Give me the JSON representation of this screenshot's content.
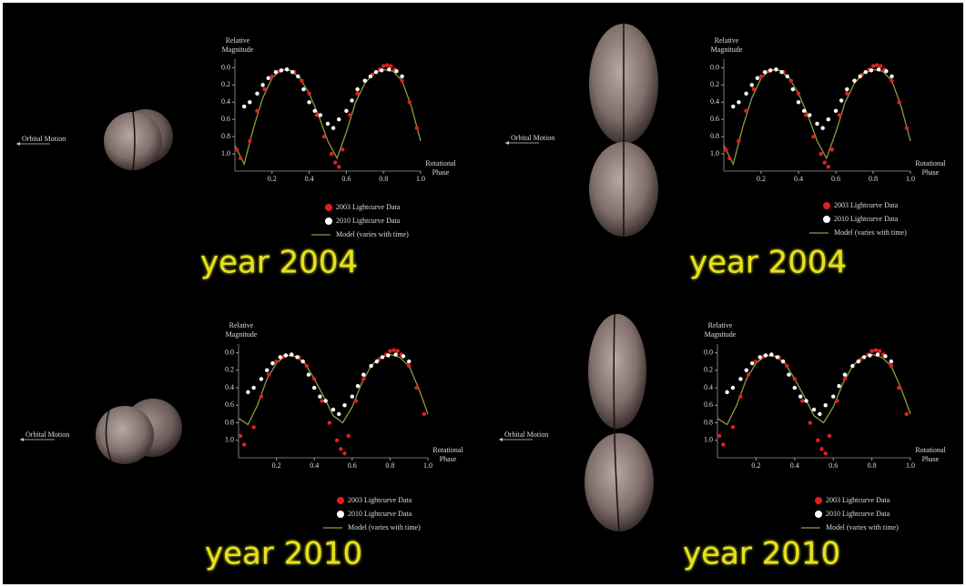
{
  "chart_data": [
    {
      "type": "scatter",
      "xlabel": "Rotational Phase",
      "ylabel": "Relative Magnitude",
      "xlim": [
        0,
        1
      ],
      "ylim": [
        1.2,
        -0.1
      ],
      "xticks": [
        0.2,
        0.4,
        0.6,
        0.8,
        {
          "value": 1,
          "label": "1.0"
        }
      ],
      "yticks": [
        {
          "value": 0,
          "label": "0.0"
        },
        0.2,
        0.4,
        0.6,
        0.8,
        {
          "value": 1,
          "label": "1.0"
        }
      ],
      "series": [
        {
          "name": "2003 Lightcurve Data",
          "color": "#e02020",
          "x": [
            0.01,
            0.03,
            0.08,
            0.12,
            0.16,
            0.2,
            0.24,
            0.28,
            0.32,
            0.36,
            0.4,
            0.44,
            0.48,
            0.52,
            0.54,
            0.56,
            0.58,
            0.62,
            0.66,
            0.7,
            0.74,
            0.78,
            0.8,
            0.82,
            0.84,
            0.86,
            0.9,
            0.94,
            0.98
          ],
          "values": [
            0.95,
            1.05,
            0.85,
            0.5,
            0.25,
            0.1,
            0.04,
            0.02,
            0.05,
            0.15,
            0.3,
            0.55,
            0.8,
            1.0,
            1.1,
            1.15,
            0.95,
            0.55,
            0.3,
            0.15,
            0.08,
            0.02,
            -0.02,
            -0.03,
            -0.02,
            0.02,
            0.15,
            0.4,
            0.7
          ]
        },
        {
          "name": "2010 Lightcurve Data",
          "color": "#ffffff",
          "x": [
            0.05,
            0.08,
            0.12,
            0.15,
            0.18,
            0.22,
            0.25,
            0.28,
            0.31,
            0.34,
            0.37,
            0.4,
            0.43,
            0.46,
            0.5,
            0.53,
            0.56,
            0.6,
            0.63,
            0.66,
            0.7,
            0.73,
            0.76,
            0.79,
            0.83,
            0.87,
            0.9
          ],
          "values": [
            0.45,
            0.4,
            0.3,
            0.2,
            0.12,
            0.05,
            0.03,
            0.02,
            0.05,
            0.1,
            0.25,
            0.4,
            0.5,
            0.55,
            0.65,
            0.7,
            0.6,
            0.5,
            0.38,
            0.25,
            0.15,
            0.1,
            0.05,
            0.03,
            0.02,
            0.04,
            0.1
          ]
        },
        {
          "name": "Model (varies with time)",
          "color": "#8f9a3c",
          "x": [
            0,
            0.05,
            0.1,
            0.15,
            0.2,
            0.25,
            0.3,
            0.35,
            0.4,
            0.45,
            0.5,
            0.55,
            0.6,
            0.65,
            0.7,
            0.75,
            0.8,
            0.85,
            0.9,
            0.95,
            1
          ],
          "values": [
            0.9,
            1.12,
            0.7,
            0.35,
            0.12,
            0.02,
            0.03,
            0.12,
            0.3,
            0.55,
            0.85,
            1.05,
            0.75,
            0.4,
            0.18,
            0.06,
            0.02,
            0.04,
            0.15,
            0.45,
            0.85
          ]
        }
      ],
      "annotations": {
        "orbit": "Orbital Motion",
        "year": "year 2004"
      }
    },
    {
      "type": "scatter",
      "xlabel": "Rotational Phase",
      "ylabel": "Relative Magnitude",
      "xlim": [
        0,
        1
      ],
      "ylim": [
        1.2,
        -0.1
      ],
      "xticks": [
        0.2,
        0.4,
        0.6,
        0.8,
        {
          "value": 1,
          "label": "1.0"
        }
      ],
      "yticks": [
        {
          "value": 0,
          "label": "0.0"
        },
        0.2,
        0.4,
        0.6,
        0.8,
        {
          "value": 1,
          "label": "1.0"
        }
      ],
      "series": [
        {
          "name": "2003 Lightcurve Data",
          "color": "#e02020",
          "x": [
            0.01,
            0.03,
            0.08,
            0.12,
            0.16,
            0.2,
            0.24,
            0.28,
            0.32,
            0.36,
            0.4,
            0.44,
            0.48,
            0.52,
            0.54,
            0.56,
            0.58,
            0.62,
            0.66,
            0.7,
            0.74,
            0.78,
            0.8,
            0.82,
            0.84,
            0.86,
            0.9,
            0.94,
            0.98
          ],
          "values": [
            0.95,
            1.05,
            0.85,
            0.5,
            0.25,
            0.1,
            0.04,
            0.02,
            0.05,
            0.15,
            0.3,
            0.55,
            0.8,
            1.0,
            1.1,
            1.15,
            0.95,
            0.55,
            0.3,
            0.15,
            0.08,
            0.02,
            -0.02,
            -0.03,
            -0.02,
            0.02,
            0.15,
            0.4,
            0.7
          ]
        },
        {
          "name": "2010 Lightcurve Data",
          "color": "#ffffff",
          "x": [
            0.05,
            0.08,
            0.12,
            0.15,
            0.18,
            0.22,
            0.25,
            0.28,
            0.31,
            0.34,
            0.37,
            0.4,
            0.43,
            0.46,
            0.5,
            0.53,
            0.56,
            0.6,
            0.63,
            0.66,
            0.7,
            0.73,
            0.76,
            0.79,
            0.83,
            0.87,
            0.9
          ],
          "values": [
            0.45,
            0.4,
            0.3,
            0.2,
            0.12,
            0.05,
            0.03,
            0.02,
            0.05,
            0.1,
            0.25,
            0.4,
            0.5,
            0.55,
            0.65,
            0.7,
            0.6,
            0.5,
            0.38,
            0.25,
            0.15,
            0.1,
            0.05,
            0.03,
            0.02,
            0.04,
            0.1
          ]
        },
        {
          "name": "Model (varies with time)",
          "color": "#8f9a3c",
          "x": [
            0,
            0.05,
            0.1,
            0.15,
            0.2,
            0.25,
            0.3,
            0.35,
            0.4,
            0.45,
            0.5,
            0.55,
            0.6,
            0.65,
            0.7,
            0.75,
            0.8,
            0.85,
            0.9,
            0.95,
            1
          ],
          "values": [
            0.9,
            1.12,
            0.7,
            0.35,
            0.12,
            0.02,
            0.03,
            0.12,
            0.3,
            0.55,
            0.85,
            1.05,
            0.75,
            0.4,
            0.18,
            0.06,
            0.02,
            0.04,
            0.15,
            0.45,
            0.85
          ]
        }
      ],
      "annotations": {
        "orbit": "Orbital Motion",
        "year": "year 2004"
      }
    },
    {
      "type": "scatter",
      "xlabel": "Rotational Phase",
      "ylabel": "Relative Magnitude",
      "xlim": [
        0,
        1
      ],
      "ylim": [
        1.2,
        -0.1
      ],
      "xticks": [
        0.2,
        0.4,
        0.6,
        0.8,
        {
          "value": 1,
          "label": "1.0"
        }
      ],
      "yticks": [
        {
          "value": 0,
          "label": "0.0"
        },
        0.2,
        0.4,
        0.6,
        0.8,
        {
          "value": 1,
          "label": "1.0"
        }
      ],
      "series": [
        {
          "name": "2003 Lightcurve Data",
          "color": "#e02020",
          "x": [
            0.01,
            0.03,
            0.08,
            0.12,
            0.16,
            0.2,
            0.24,
            0.28,
            0.32,
            0.36,
            0.4,
            0.44,
            0.48,
            0.52,
            0.54,
            0.56,
            0.58,
            0.62,
            0.66,
            0.7,
            0.74,
            0.78,
            0.8,
            0.82,
            0.84,
            0.86,
            0.9,
            0.94,
            0.98
          ],
          "values": [
            0.95,
            1.05,
            0.85,
            0.5,
            0.25,
            0.1,
            0.04,
            0.02,
            0.05,
            0.15,
            0.3,
            0.55,
            0.8,
            1.0,
            1.1,
            1.15,
            0.95,
            0.55,
            0.3,
            0.15,
            0.08,
            0.02,
            -0.02,
            -0.03,
            -0.02,
            0.02,
            0.15,
            0.4,
            0.7
          ]
        },
        {
          "name": "2010 Lightcurve Data",
          "color": "#ffffff",
          "x": [
            0.05,
            0.08,
            0.12,
            0.15,
            0.18,
            0.22,
            0.25,
            0.28,
            0.31,
            0.34,
            0.37,
            0.4,
            0.43,
            0.46,
            0.5,
            0.53,
            0.56,
            0.6,
            0.63,
            0.66,
            0.7,
            0.73,
            0.76,
            0.79,
            0.83,
            0.87,
            0.9
          ],
          "values": [
            0.45,
            0.4,
            0.3,
            0.2,
            0.12,
            0.05,
            0.03,
            0.02,
            0.05,
            0.1,
            0.25,
            0.4,
            0.5,
            0.55,
            0.65,
            0.7,
            0.6,
            0.5,
            0.38,
            0.25,
            0.15,
            0.1,
            0.05,
            0.03,
            0.02,
            0.04,
            0.1
          ]
        },
        {
          "name": "Model (varies with time)",
          "color": "#8f9a3c",
          "x": [
            0,
            0.05,
            0.1,
            0.15,
            0.2,
            0.25,
            0.3,
            0.35,
            0.4,
            0.45,
            0.5,
            0.55,
            0.6,
            0.65,
            0.7,
            0.75,
            0.8,
            0.85,
            0.9,
            0.95,
            1
          ],
          "values": [
            0.75,
            0.82,
            0.6,
            0.3,
            0.12,
            0.03,
            0.04,
            0.12,
            0.3,
            0.5,
            0.72,
            0.8,
            0.62,
            0.35,
            0.15,
            0.05,
            0.02,
            0.05,
            0.15,
            0.4,
            0.7
          ]
        }
      ],
      "annotations": {
        "orbit": "Orbital Motion",
        "year": "year 2010"
      }
    },
    {
      "type": "scatter",
      "xlabel": "Rotational Phase",
      "ylabel": "Relative Magnitude",
      "xlim": [
        0,
        1
      ],
      "ylim": [
        1.2,
        -0.1
      ],
      "xticks": [
        0.2,
        0.4,
        0.6,
        0.8,
        {
          "value": 1,
          "label": "1.0"
        }
      ],
      "yticks": [
        {
          "value": 0,
          "label": "0.0"
        },
        0.2,
        0.4,
        0.6,
        0.8,
        {
          "value": 1,
          "label": "1.0"
        }
      ],
      "series": [
        {
          "name": "2003 Lightcurve Data",
          "color": "#e02020",
          "x": [
            0.01,
            0.03,
            0.08,
            0.12,
            0.16,
            0.2,
            0.24,
            0.28,
            0.32,
            0.36,
            0.4,
            0.44,
            0.48,
            0.52,
            0.54,
            0.56,
            0.58,
            0.62,
            0.66,
            0.7,
            0.74,
            0.78,
            0.8,
            0.82,
            0.84,
            0.86,
            0.9,
            0.94,
            0.98
          ],
          "values": [
            0.95,
            1.05,
            0.85,
            0.5,
            0.25,
            0.1,
            0.04,
            0.02,
            0.05,
            0.15,
            0.3,
            0.55,
            0.8,
            1.0,
            1.1,
            1.15,
            0.95,
            0.55,
            0.3,
            0.15,
            0.08,
            0.02,
            -0.02,
            -0.03,
            -0.02,
            0.02,
            0.15,
            0.4,
            0.7
          ]
        },
        {
          "name": "2010 Lightcurve Data",
          "color": "#ffffff",
          "x": [
            0.05,
            0.08,
            0.12,
            0.15,
            0.18,
            0.22,
            0.25,
            0.28,
            0.31,
            0.34,
            0.37,
            0.4,
            0.43,
            0.46,
            0.5,
            0.53,
            0.56,
            0.6,
            0.63,
            0.66,
            0.7,
            0.73,
            0.76,
            0.79,
            0.83,
            0.87,
            0.9
          ],
          "values": [
            0.45,
            0.4,
            0.3,
            0.2,
            0.12,
            0.05,
            0.03,
            0.02,
            0.05,
            0.1,
            0.25,
            0.4,
            0.5,
            0.55,
            0.65,
            0.7,
            0.6,
            0.5,
            0.38,
            0.25,
            0.15,
            0.1,
            0.05,
            0.03,
            0.02,
            0.04,
            0.1
          ]
        },
        {
          "name": "Model (varies with time)",
          "color": "#8f9a3c",
          "x": [
            0,
            0.05,
            0.1,
            0.15,
            0.2,
            0.25,
            0.3,
            0.35,
            0.4,
            0.45,
            0.5,
            0.55,
            0.6,
            0.65,
            0.7,
            0.75,
            0.8,
            0.85,
            0.9,
            0.95,
            1
          ],
          "values": [
            0.75,
            0.82,
            0.6,
            0.3,
            0.12,
            0.03,
            0.04,
            0.12,
            0.3,
            0.5,
            0.72,
            0.8,
            0.62,
            0.35,
            0.15,
            0.05,
            0.02,
            0.05,
            0.15,
            0.4,
            0.7
          ]
        }
      ],
      "annotations": {
        "orbit": "Orbital Motion",
        "year": "year 2010"
      }
    }
  ]
}
